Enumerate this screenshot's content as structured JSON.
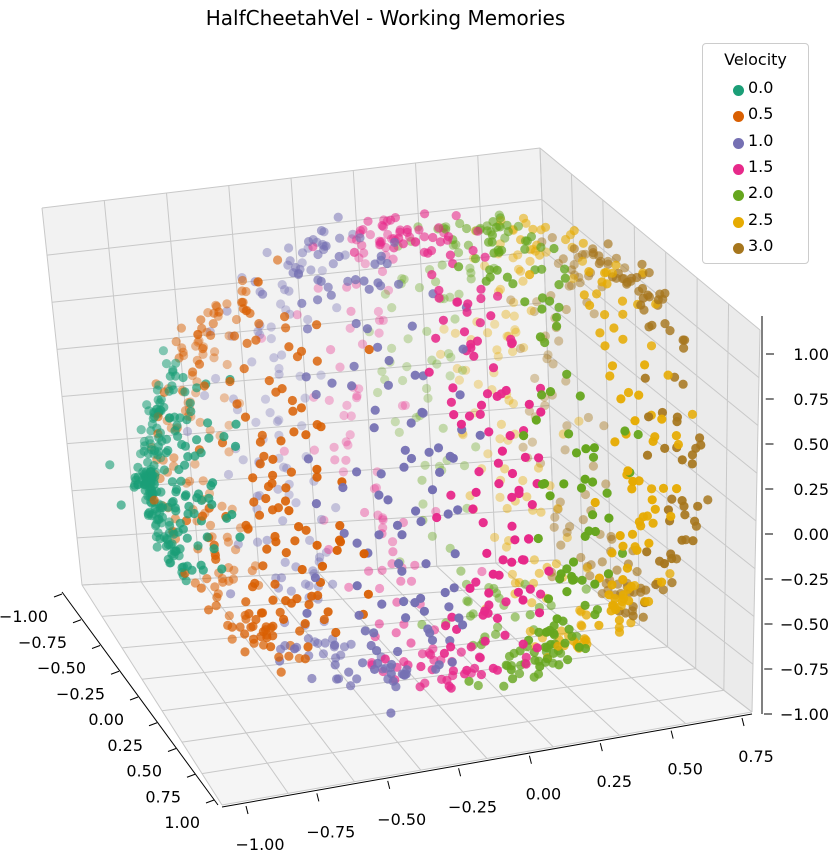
{
  "chart_data": {
    "type": "scatter",
    "projection": "3d",
    "title": "HalfCheetahVel - Working Memories",
    "legend": {
      "title": "Velocity",
      "placement": "top-right",
      "entries": [
        {
          "label": "0.0",
          "color": "#1b9e77"
        },
        {
          "label": "0.5",
          "color": "#d95f02"
        },
        {
          "label": "1.0",
          "color": "#7570b3"
        },
        {
          "label": "1.5",
          "color": "#e7298a"
        },
        {
          "label": "2.0",
          "color": "#66a61e"
        },
        {
          "label": "2.5",
          "color": "#e6ab02"
        },
        {
          "label": "3.0",
          "color": "#a6761d"
        }
      ]
    },
    "x_ticks": [
      "−1.00",
      "−0.75",
      "−0.50",
      "−0.25",
      "0.00",
      "0.25",
      "0.50",
      "0.75",
      "1.00"
    ],
    "y_ticks": [
      "−1.00",
      "−0.75",
      "−0.50",
      "−0.25",
      "0.00",
      "0.25",
      "0.50",
      "0.75"
    ],
    "z_ticks": [
      "−1.00",
      "−0.75",
      "−0.50",
      "−0.25",
      "0.00",
      "0.25",
      "0.50",
      "0.75",
      "1.00"
    ],
    "xlim": [
      -1.0,
      1.0
    ],
    "ylim": [
      -1.0,
      0.75
    ],
    "zlim": [
      -1.0,
      1.0
    ],
    "grid": true,
    "series": [
      {
        "name": "0.0",
        "color": "#1b9e77",
        "y_center": -0.95,
        "y_spread": 0.05,
        "n": 230
      },
      {
        "name": "0.5",
        "color": "#d95f02",
        "y_center": -0.7,
        "y_spread": 0.12,
        "n": 260
      },
      {
        "name": "1.0",
        "color": "#7570b3",
        "y_center": -0.35,
        "y_spread": 0.12,
        "n": 260
      },
      {
        "name": "1.5",
        "color": "#e7298a",
        "y_center": -0.05,
        "y_spread": 0.1,
        "n": 260
      },
      {
        "name": "2.0",
        "color": "#66a61e",
        "y_center": 0.22,
        "y_spread": 0.09,
        "n": 240
      },
      {
        "name": "2.5",
        "color": "#e6ab02",
        "y_center": 0.45,
        "y_spread": 0.08,
        "n": 220
      },
      {
        "name": "3.0",
        "color": "#a6761d",
        "y_center": 0.62,
        "y_spread": 0.06,
        "n": 180
      }
    ]
  }
}
